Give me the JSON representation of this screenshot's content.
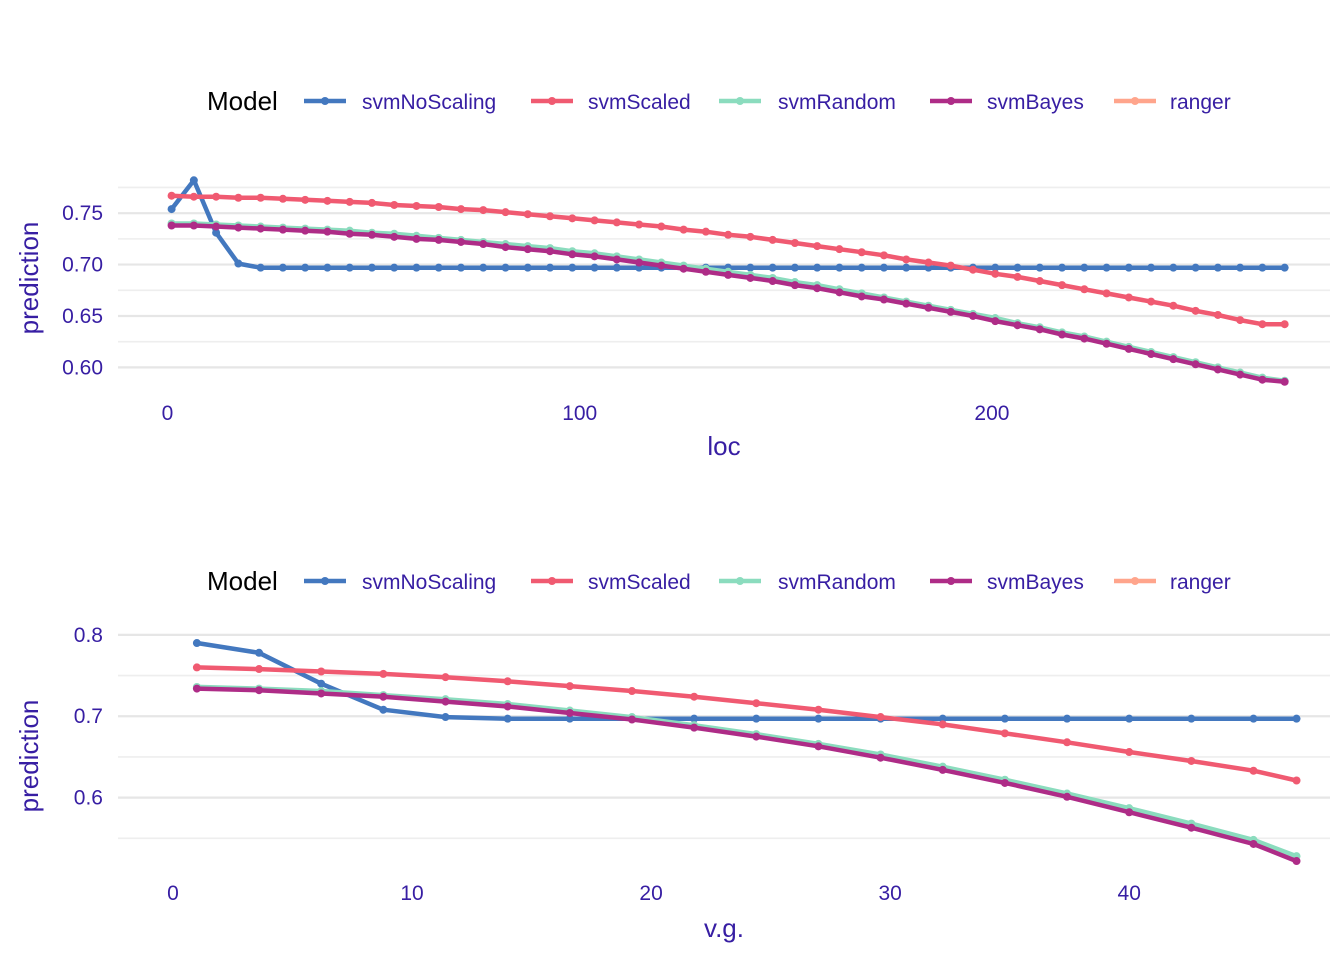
{
  "colors": {
    "svmNoScaling": "#4378bf",
    "svmScaled": "#f05a71",
    "svmRandom": "#8bdcbe",
    "svmBayes": "#ae2c87",
    "ranger": "#ffa58c",
    "axis_text": "#371ea3"
  },
  "chart_data": [
    {
      "type": "line",
      "xlabel": "loc",
      "ylabel": "prediction",
      "xlim": [
        -12,
        282
      ],
      "ylim": [
        0.578,
        0.792
      ],
      "x_ticks": [
        0,
        100,
        200
      ],
      "x_tick_labels": [
        "0",
        "100",
        "200"
      ],
      "y_ticks": [
        0.6,
        0.65,
        0.7,
        0.75
      ],
      "y_tick_labels": [
        "0.60",
        "0.65",
        "0.70",
        "0.75"
      ],
      "y_minor_ticks": [
        0.625,
        0.675,
        0.725,
        0.775
      ],
      "grid": true,
      "legend": {
        "title": "Model",
        "position": "top",
        "entries": [
          "svmNoScaling",
          "svmScaled",
          "svmRandom",
          "svmBayes",
          "ranger"
        ]
      },
      "series": [
        {
          "name": "svmNoScaling",
          "x": [
            1,
            6.4,
            11.8,
            17.2,
            22.6,
            28,
            33.4,
            38.8,
            44.2,
            49.6,
            55,
            60.4,
            65.8,
            71.2,
            76.6,
            82,
            87.4,
            92.8,
            98.2,
            103.6,
            109,
            114.4,
            119.8,
            125.2,
            130.6,
            136,
            141.4,
            146.8,
            152.2,
            157.6,
            163,
            168.4,
            173.8,
            179.2,
            184.6,
            190,
            195.4,
            200.8,
            206.2,
            211.6,
            217,
            222.4,
            227.8,
            233.2,
            238.6,
            244,
            249.4,
            254.8,
            260.2,
            265.6,
            271
          ],
          "y": [
            0.754,
            0.782,
            0.731,
            0.701,
            0.697,
            0.697,
            0.697,
            0.697,
            0.697,
            0.697,
            0.697,
            0.697,
            0.697,
            0.697,
            0.697,
            0.697,
            0.697,
            0.697,
            0.697,
            0.697,
            0.697,
            0.697,
            0.697,
            0.697,
            0.697,
            0.697,
            0.697,
            0.697,
            0.697,
            0.697,
            0.697,
            0.697,
            0.697,
            0.697,
            0.697,
            0.697,
            0.697,
            0.697,
            0.697,
            0.697,
            0.697,
            0.697,
            0.697,
            0.697,
            0.697,
            0.697,
            0.697,
            0.697,
            0.697,
            0.697,
            0.697
          ]
        },
        {
          "name": "svmScaled",
          "x": [
            1,
            6.4,
            11.8,
            17.2,
            22.6,
            28,
            33.4,
            38.8,
            44.2,
            49.6,
            55,
            60.4,
            65.8,
            71.2,
            76.6,
            82,
            87.4,
            92.8,
            98.2,
            103.6,
            109,
            114.4,
            119.8,
            125.2,
            130.6,
            136,
            141.4,
            146.8,
            152.2,
            157.6,
            163,
            168.4,
            173.8,
            179.2,
            184.6,
            190,
            195.4,
            200.8,
            206.2,
            211.6,
            217,
            222.4,
            227.8,
            233.2,
            238.6,
            244,
            249.4,
            254.8,
            260.2,
            265.6,
            271
          ],
          "y": [
            0.767,
            0.766,
            0.766,
            0.765,
            0.765,
            0.764,
            0.763,
            0.762,
            0.761,
            0.76,
            0.758,
            0.757,
            0.756,
            0.754,
            0.753,
            0.751,
            0.749,
            0.747,
            0.745,
            0.743,
            0.741,
            0.739,
            0.737,
            0.734,
            0.732,
            0.729,
            0.727,
            0.724,
            0.721,
            0.718,
            0.715,
            0.712,
            0.709,
            0.705,
            0.702,
            0.699,
            0.695,
            0.691,
            0.688,
            0.684,
            0.68,
            0.676,
            0.672,
            0.668,
            0.664,
            0.66,
            0.655,
            0.651,
            0.646,
            0.642,
            0.642
          ]
        },
        {
          "name": "svmRandom",
          "x": [
            1,
            6.4,
            11.8,
            17.2,
            22.6,
            28,
            33.4,
            38.8,
            44.2,
            49.6,
            55,
            60.4,
            65.8,
            71.2,
            76.6,
            82,
            87.4,
            92.8,
            98.2,
            103.6,
            109,
            114.4,
            119.8,
            125.2,
            130.6,
            136,
            141.4,
            146.8,
            152.2,
            157.6,
            163,
            168.4,
            173.8,
            179.2,
            184.6,
            190,
            195.4,
            200.8,
            206.2,
            211.6,
            217,
            222.4,
            227.8,
            233.2,
            238.6,
            244,
            249.4,
            254.8,
            260.2,
            265.6,
            271
          ],
          "y": [
            0.74,
            0.74,
            0.739,
            0.738,
            0.737,
            0.736,
            0.735,
            0.734,
            0.733,
            0.731,
            0.73,
            0.728,
            0.726,
            0.724,
            0.722,
            0.72,
            0.718,
            0.716,
            0.713,
            0.711,
            0.708,
            0.705,
            0.702,
            0.699,
            0.696,
            0.693,
            0.69,
            0.687,
            0.683,
            0.68,
            0.676,
            0.672,
            0.668,
            0.664,
            0.66,
            0.656,
            0.652,
            0.648,
            0.643,
            0.639,
            0.634,
            0.63,
            0.625,
            0.62,
            0.615,
            0.61,
            0.605,
            0.6,
            0.595,
            0.59,
            0.587
          ]
        },
        {
          "name": "svmBayes",
          "x": [
            1,
            6.4,
            11.8,
            17.2,
            22.6,
            28,
            33.4,
            38.8,
            44.2,
            49.6,
            55,
            60.4,
            65.8,
            71.2,
            76.6,
            82,
            87.4,
            92.8,
            98.2,
            103.6,
            109,
            114.4,
            119.8,
            125.2,
            130.6,
            136,
            141.4,
            146.8,
            152.2,
            157.6,
            163,
            168.4,
            173.8,
            179.2,
            184.6,
            190,
            195.4,
            200.8,
            206.2,
            211.6,
            217,
            222.4,
            227.8,
            233.2,
            238.6,
            244,
            249.4,
            254.8,
            260.2,
            265.6,
            271
          ],
          "y": [
            0.738,
            0.738,
            0.737,
            0.736,
            0.735,
            0.734,
            0.733,
            0.732,
            0.73,
            0.729,
            0.727,
            0.725,
            0.724,
            0.722,
            0.72,
            0.717,
            0.715,
            0.713,
            0.71,
            0.708,
            0.705,
            0.702,
            0.699,
            0.696,
            0.693,
            0.69,
            0.687,
            0.684,
            0.68,
            0.677,
            0.673,
            0.669,
            0.666,
            0.662,
            0.658,
            0.654,
            0.65,
            0.645,
            0.641,
            0.637,
            0.632,
            0.628,
            0.623,
            0.618,
            0.613,
            0.608,
            0.603,
            0.598,
            0.593,
            0.588,
            0.586
          ]
        },
        {
          "name": "ranger",
          "x": [],
          "y": []
        }
      ]
    },
    {
      "type": "line",
      "xlabel": "v.g.",
      "ylabel": "prediction",
      "xlim": [
        -2.3,
        48.4
      ],
      "ylim": [
        0.511,
        0.806
      ],
      "x_ticks": [
        0,
        10,
        20,
        30,
        40
      ],
      "x_tick_labels": [
        "0",
        "10",
        "20",
        "30",
        "40"
      ],
      "y_ticks": [
        0.6,
        0.7,
        0.8
      ],
      "y_tick_labels": [
        "0.6",
        "0.7",
        "0.8"
      ],
      "y_minor_ticks": [
        0.55,
        0.65,
        0.75
      ],
      "grid": true,
      "legend": {
        "title": "Model",
        "position": "top",
        "entries": [
          "svmNoScaling",
          "svmScaled",
          "svmRandom",
          "svmBayes",
          "ranger"
        ]
      },
      "series": [
        {
          "name": "svmNoScaling",
          "x": [
            1,
            3.6,
            6.2,
            8.8,
            11.4,
            14,
            16.6,
            19.2,
            21.8,
            24.4,
            27,
            29.6,
            32.2,
            34.8,
            37.4,
            40,
            42.6,
            45.2,
            47
          ],
          "y": [
            0.79,
            0.778,
            0.74,
            0.708,
            0.699,
            0.697,
            0.697,
            0.697,
            0.697,
            0.697,
            0.697,
            0.697,
            0.697,
            0.697,
            0.697,
            0.697,
            0.697,
            0.697,
            0.697
          ]
        },
        {
          "name": "svmScaled",
          "x": [
            1,
            3.6,
            6.2,
            8.8,
            11.4,
            14,
            16.6,
            19.2,
            21.8,
            24.4,
            27,
            29.6,
            32.2,
            34.8,
            37.4,
            40,
            42.6,
            45.2,
            47
          ],
          "y": [
            0.76,
            0.758,
            0.755,
            0.752,
            0.748,
            0.743,
            0.737,
            0.731,
            0.724,
            0.716,
            0.708,
            0.699,
            0.69,
            0.679,
            0.668,
            0.656,
            0.645,
            0.633,
            0.621
          ]
        },
        {
          "name": "svmRandom",
          "x": [
            1,
            3.6,
            6.2,
            8.8,
            11.4,
            14,
            16.6,
            19.2,
            21.8,
            24.4,
            27,
            29.6,
            32.2,
            34.8,
            37.4,
            40,
            42.6,
            45.2,
            47
          ],
          "y": [
            0.736,
            0.734,
            0.731,
            0.726,
            0.721,
            0.715,
            0.707,
            0.699,
            0.689,
            0.678,
            0.666,
            0.653,
            0.638,
            0.622,
            0.605,
            0.587,
            0.568,
            0.548,
            0.528
          ]
        },
        {
          "name": "svmBayes",
          "x": [
            1,
            3.6,
            6.2,
            8.8,
            11.4,
            14,
            16.6,
            19.2,
            21.8,
            24.4,
            27,
            29.6,
            32.2,
            34.8,
            37.4,
            40,
            42.6,
            45.2,
            47
          ],
          "y": [
            0.734,
            0.732,
            0.728,
            0.724,
            0.718,
            0.712,
            0.704,
            0.696,
            0.686,
            0.675,
            0.663,
            0.649,
            0.634,
            0.618,
            0.601,
            0.582,
            0.563,
            0.543,
            0.522
          ]
        },
        {
          "name": "ranger",
          "x": [],
          "y": []
        }
      ]
    }
  ]
}
